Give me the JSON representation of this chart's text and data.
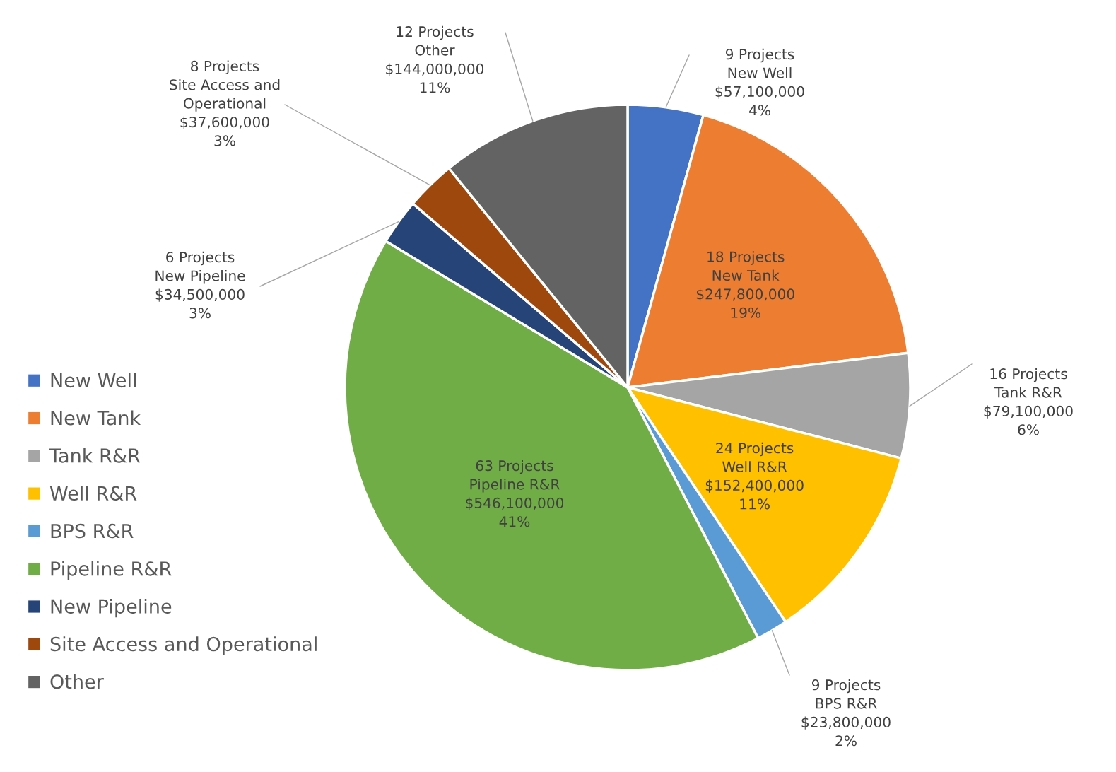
{
  "chart_data": {
    "type": "pie",
    "categories": [
      "New Well",
      "New Tank",
      "Tank R&R",
      "Well R&R",
      "BPS R&R",
      "Pipeline R&R",
      "New Pipeline",
      "Site Access and Operational",
      "Other"
    ],
    "values": [
      57100000,
      247800000,
      79100000,
      152400000,
      23800000,
      546100000,
      34500000,
      37600000,
      144000000
    ],
    "colors": [
      "#4472c4",
      "#ed7d31",
      "#a5a5a5",
      "#ffc000",
      "#5b9bd5",
      "#70ad47",
      "#264478",
      "#9e480e",
      "#636363"
    ],
    "value_labels": [
      "9 Projects\nNew Well\n$57,100,000\n4%",
      "18 Projects\nNew Tank\n$247,800,000\n19%",
      "16 Projects\nTank R&R\n$79,100,000\n6%",
      "24 Projects\nWell R&R\n$152,400,000\n11%",
      "9 Projects\nBPS R&R\n$23,800,000\n2%",
      "63 Projects\nPipeline R&R\n$546,100,000\n41%",
      "6 Projects\nNew Pipeline\n$34,500,000\n3%",
      "8 Projects\nSite Access and\nOperational\n$37,600,000\n3%",
      "12 Projects\nOther\n$144,000,000\n11%"
    ],
    "legend": "left"
  }
}
